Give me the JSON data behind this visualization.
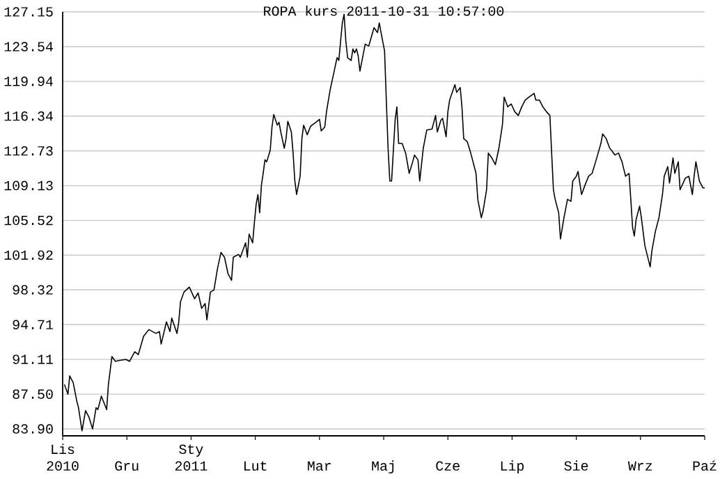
{
  "chart_data": {
    "type": "line",
    "title": "ROPA kurs  2011-10-31 10:57:00",
    "xlim": [
      "2010-10-31",
      "2011-10-31"
    ],
    "xticks": [
      {
        "value": "2010-10-31",
        "label": "Lis 2010"
      },
      {
        "value": "2010-12-06T12:00",
        "label": "Gru"
      },
      {
        "value": "2011-01-12",
        "label": "Sty 2011"
      },
      {
        "value": "2011-02-17T12:00",
        "label": "Lut"
      },
      {
        "value": "2011-03-26",
        "label": "Mar"
      },
      {
        "value": "2011-05-01T12:00",
        "label": "Maj"
      },
      {
        "value": "2011-06-07",
        "label": "Cze"
      },
      {
        "value": "2011-07-13T12:00",
        "label": "Lip"
      },
      {
        "value": "2011-08-19",
        "label": "Sie"
      },
      {
        "value": "2011-09-24T12:00",
        "label": "Wrz"
      },
      {
        "value": "2011-10-31",
        "label": "Paź"
      }
    ],
    "ylim": [
      83.18,
      127.15
    ],
    "yticks": [
      {
        "value": 83.9,
        "label": "83.90"
      },
      {
        "value": 87.5,
        "label": "87.50"
      },
      91.11,
      94.71,
      98.32,
      101.92,
      105.52,
      109.13,
      112.73,
      116.34,
      119.94,
      123.54,
      127.15
    ],
    "grid": "y",
    "series": [
      {
        "color": "#000000",
        "x": [
          "2010-11-01",
          "2010-11-03",
          "2010-11-04",
          "2010-11-06",
          "2010-11-08",
          "2010-11-09",
          "2010-11-11",
          "2010-11-13",
          "2010-11-15",
          "2010-11-17",
          "2010-11-19",
          "2010-11-20",
          "2010-11-22",
          "2010-11-25",
          "2010-11-26",
          "2010-11-28",
          "2010-11-30",
          "2010-12-02",
          "2010-12-06",
          "2010-12-08",
          "2010-12-11",
          "2010-12-13",
          "2010-12-16",
          "2010-12-19",
          "2010-12-23",
          "2010-12-25",
          "2010-12-26",
          "2010-12-29",
          "2010-12-31",
          "2011-01-01",
          "2011-01-04",
          "2011-01-05",
          "2011-01-06",
          "2011-01-08",
          "2011-01-11",
          "2011-01-14",
          "2011-01-16",
          "2011-01-18",
          "2011-01-20",
          "2011-01-21",
          "2011-01-23",
          "2011-01-25",
          "2011-01-27",
          "2011-01-29",
          "2011-01-31",
          "2011-02-02",
          "2011-02-04",
          "2011-02-05",
          "2011-02-08",
          "2011-02-09",
          "2011-02-12",
          "2011-02-13",
          "2011-02-14",
          "2011-02-16",
          "2011-02-17",
          "2011-02-18",
          "2011-02-19",
          "2011-02-20",
          "2011-02-21",
          "2011-02-22",
          "2011-02-23",
          "2011-02-24",
          "2011-02-26",
          "2011-02-27",
          "2011-02-28",
          "2011-03-02",
          "2011-03-03",
          "2011-03-04",
          "2011-03-06",
          "2011-03-07",
          "2011-03-08",
          "2011-03-10",
          "2011-03-11",
          "2011-03-12",
          "2011-03-13",
          "2011-03-15",
          "2011-03-16",
          "2011-03-17",
          "2011-03-19",
          "2011-03-21",
          "2011-03-24",
          "2011-03-26",
          "2011-03-27",
          "2011-03-29",
          "2011-03-30",
          "2011-04-01",
          "2011-04-03",
          "2011-04-05",
          "2011-04-06",
          "2011-04-07",
          "2011-04-08",
          "2011-04-09",
          "2011-04-10",
          "2011-04-11",
          "2011-04-13",
          "2011-04-14",
          "2011-04-15",
          "2011-04-16",
          "2011-04-17",
          "2011-04-18",
          "2011-04-21",
          "2011-04-23",
          "2011-04-26",
          "2011-04-28",
          "2011-04-29",
          "2011-04-30",
          "2011-05-02",
          "2011-05-03",
          "2011-05-04",
          "2011-05-05",
          "2011-05-06",
          "2011-05-08",
          "2011-05-09",
          "2011-05-10",
          "2011-05-12",
          "2011-05-14",
          "2011-05-16",
          "2011-05-18",
          "2011-05-19",
          "2011-05-21",
          "2011-05-22",
          "2011-05-24",
          "2011-05-26",
          "2011-05-29",
          "2011-05-31",
          "2011-06-01",
          "2011-06-03",
          "2011-06-04",
          "2011-06-06",
          "2011-06-07",
          "2011-06-08",
          "2011-06-11",
          "2011-06-12",
          "2011-06-14",
          "2011-06-15",
          "2011-06-16",
          "2011-06-18",
          "2011-06-20",
          "2011-06-22",
          "2011-06-23",
          "2011-06-24",
          "2011-06-26",
          "2011-06-27",
          "2011-06-29",
          "2011-06-30",
          "2011-07-02",
          "2011-07-04",
          "2011-07-06",
          "2011-07-08",
          "2011-07-09",
          "2011-07-11",
          "2011-07-13",
          "2011-07-15",
          "2011-07-17",
          "2011-07-19",
          "2011-07-21",
          "2011-07-23",
          "2011-07-26",
          "2011-07-27",
          "2011-07-29",
          "2011-07-31",
          "2011-08-02",
          "2011-08-04",
          "2011-08-05",
          "2011-08-06",
          "2011-08-07",
          "2011-08-09",
          "2011-08-10",
          "2011-08-12",
          "2011-08-14",
          "2011-08-16",
          "2011-08-17",
          "2011-08-19",
          "2011-08-20",
          "2011-08-22",
          "2011-08-24",
          "2011-08-26",
          "2011-08-28",
          "2011-08-30",
          "2011-09-02",
          "2011-09-03",
          "2011-09-05",
          "2011-09-07",
          "2011-09-08",
          "2011-09-10",
          "2011-09-12",
          "2011-09-14",
          "2011-09-16",
          "2011-09-18",
          "2011-09-19",
          "2011-09-20",
          "2011-09-21",
          "2011-09-22",
          "2011-09-24",
          "2011-09-25",
          "2011-09-27",
          "2011-09-30",
          "2011-10-01",
          "2011-10-03",
          "2011-10-05",
          "2011-10-07",
          "2011-10-08",
          "2011-10-10",
          "2011-10-11",
          "2011-10-13",
          "2011-10-14",
          "2011-10-16",
          "2011-10-17",
          "2011-10-20",
          "2011-10-22",
          "2011-10-24",
          "2011-10-25",
          "2011-10-26",
          "2011-10-28",
          "2011-10-30",
          "2011-10-31"
        ],
        "values": [
          88.5,
          87.5,
          89.4,
          88.7,
          86.8,
          86.1,
          83.7,
          85.8,
          85.1,
          83.9,
          86.1,
          85.9,
          87.3,
          85.9,
          88.5,
          91.4,
          90.9,
          91.0,
          91.1,
          90.9,
          91.9,
          91.6,
          93.5,
          94.2,
          93.8,
          94.0,
          92.7,
          95.0,
          94.0,
          95.4,
          93.8,
          95.0,
          97.1,
          98.1,
          98.6,
          97.4,
          98.0,
          96.4,
          96.9,
          95.2,
          98.1,
          98.3,
          100.5,
          102.2,
          101.7,
          100.0,
          99.3,
          101.7,
          102.0,
          101.7,
          103.2,
          101.7,
          104.1,
          103.2,
          105.3,
          107.2,
          108.2,
          106.3,
          109.2,
          110.4,
          111.8,
          111.6,
          112.8,
          115.2,
          116.5,
          115.4,
          115.7,
          114.7,
          113.0,
          114.0,
          115.8,
          114.7,
          112.5,
          109.6,
          108.2,
          110.1,
          114.0,
          115.4,
          114.4,
          115.3,
          115.7,
          116.0,
          114.8,
          115.2,
          116.8,
          119.0,
          120.7,
          122.4,
          122.1,
          124.1,
          126.0,
          126.9,
          124.1,
          122.4,
          122.1,
          123.3,
          122.9,
          123.3,
          122.6,
          121.0,
          123.8,
          123.6,
          125.5,
          125.0,
          126.0,
          125.0,
          123.1,
          118.0,
          113.0,
          109.6,
          109.6,
          115.9,
          117.3,
          113.5,
          113.5,
          112.5,
          110.4,
          111.6,
          112.3,
          111.8,
          109.6,
          113.0,
          114.9,
          115.0,
          116.4,
          114.7,
          115.9,
          116.1,
          114.2,
          116.8,
          118.0,
          119.6,
          118.8,
          119.3,
          117.3,
          114.0,
          113.7,
          112.5,
          111.1,
          110.4,
          107.7,
          105.8,
          106.5,
          108.7,
          112.5,
          112.0,
          111.3,
          113.0,
          115.4,
          118.3,
          117.3,
          117.6,
          116.8,
          116.4,
          117.3,
          118.0,
          118.3,
          118.7,
          118.0,
          118.0,
          117.3,
          116.8,
          116.4,
          112.5,
          108.7,
          107.7,
          106.3,
          103.6,
          105.8,
          107.7,
          107.5,
          109.6,
          110.1,
          110.6,
          108.2,
          109.2,
          110.1,
          110.4,
          111.6,
          113.5,
          114.5,
          114.0,
          113.0,
          112.8,
          112.3,
          112.5,
          111.6,
          110.1,
          110.4,
          107.7,
          104.8,
          103.9,
          105.6,
          107.0,
          105.8,
          102.9,
          100.7,
          102.4,
          104.4,
          105.8,
          108.2,
          110.1,
          111.1,
          109.4,
          112.0,
          110.4,
          111.6,
          108.7,
          109.9,
          110.1,
          108.2,
          110.1,
          111.6,
          109.6,
          108.9,
          108.9
        ]
      }
    ]
  }
}
